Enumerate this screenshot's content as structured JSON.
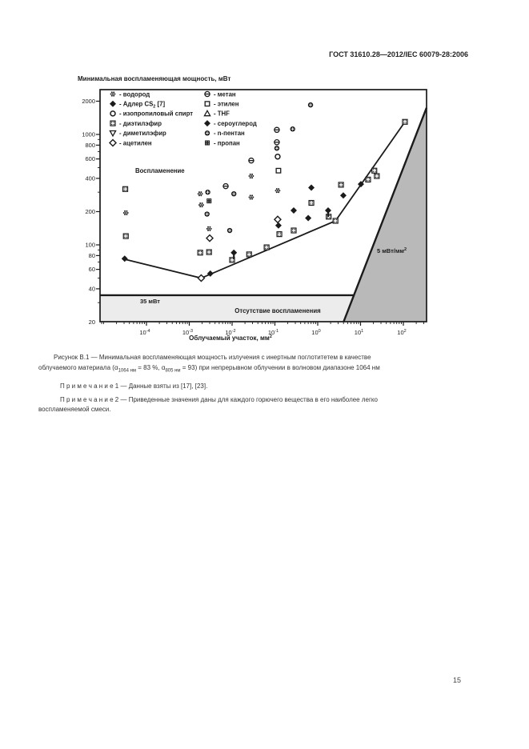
{
  "page": {
    "header": "ГОСТ 31610.28—2012/IEC 60079-28:2006",
    "page_number": "15"
  },
  "figure": {
    "caption_line1": "Рисунок В.1 — Минимальная воспламеняющая мощность излучения с инертным поглотитетем в качестве",
    "caption_line2_parts": {
      "a": "облучаемого материала (α",
      "sub1": "1064 нм",
      "b": " = 83 %, α",
      "sub2": "805 нм",
      "c": " = 93) при непрерывном облучении в волновом диапазоне 1064 нм"
    },
    "note1": "П р и м е ч а н и е  1 — Данные взяты из [17], [23].",
    "note2_line1": "П р и м е ч а н и е  2 — Приведенные значения даны для каждого горючего вещества в его наиболее легко",
    "note2_line2": "воспламеняемой смеси."
  },
  "chart_data": {
    "type": "scatter",
    "x_scale": "log",
    "y_scale": "log",
    "y_axis_title": "Минимальная воспламеняющая мощность, мВт",
    "x_axis_label": {
      "text": "Облучаемый участок, мм",
      "sup": "2"
    },
    "x_tick_exponents": [
      -4,
      -3,
      -2,
      -1,
      0,
      1,
      2
    ],
    "y_ticks": [
      2000,
      1000,
      800,
      600,
      400,
      200,
      100,
      80,
      60,
      40,
      20
    ],
    "region_labels": {
      "ignition": "Воспламенение",
      "no_ignition": "Отсутствие воспламенения"
    },
    "threshold_line": {
      "power_mW": 35,
      "label": "35 мВт"
    },
    "power_density_line": {
      "mW_per_mm2": 5,
      "label": {
        "text": "5 мВт/мм",
        "sup": "2"
      }
    },
    "boundary_line_points": [
      [
        3.1e-05,
        74
      ],
      [
        0.0019,
        50
      ],
      [
        2.6,
        165
      ],
      [
        109,
        1300
      ]
    ],
    "legend": {
      "columns": [
        [
          {
            "marker": "hydrogen",
            "label": "- водород"
          },
          {
            "marker": "cs2",
            "label": "- Адлер CS",
            "sub": "2",
            "label2": " [7]"
          },
          {
            "marker": "ipa",
            "label": "- изопропиловый спирт"
          },
          {
            "marker": "diethyl_ether",
            "label": "- диэтилэфир"
          },
          {
            "marker": "dimethyl_ether",
            "label": "- диметилэфир"
          },
          {
            "marker": "acetylene",
            "label": "- ацетилен"
          }
        ],
        [
          {
            "marker": "methane",
            "label": "- метан"
          },
          {
            "marker": "ethylene",
            "label": "- этилен"
          },
          {
            "marker": "thf",
            "label": "- THF"
          },
          {
            "marker": "cs2",
            "label": "- сероуглерод"
          },
          {
            "marker": "n_pentane",
            "label": "- n-пентан"
          },
          {
            "marker": "propane",
            "label": "- пропан"
          }
        ]
      ]
    },
    "series": [
      {
        "name": "водород",
        "marker": "hydrogen",
        "points": [
          [
            3.3e-05,
            195
          ],
          [
            0.0018,
            290
          ],
          [
            0.0019,
            230
          ],
          [
            0.0029,
            140
          ],
          [
            0.028,
            420
          ],
          [
            0.028,
            270
          ],
          [
            0.116,
            310
          ]
        ]
      },
      {
        "name": "Адлер CS2 [7]",
        "marker": "cs2",
        "points": [
          [
            3.1e-05,
            75
          ],
          [
            0.0031,
            55
          ],
          [
            0.121,
            150
          ]
        ]
      },
      {
        "name": "изопропиловый спирт",
        "marker": "ipa",
        "points": [
          [
            0.116,
            630
          ]
        ]
      },
      {
        "name": "диэтилэфир",
        "marker": "diethyl_ether",
        "points": [
          [
            3.2e-05,
            320
          ],
          [
            3.3e-05,
            120
          ],
          [
            0.0018,
            85
          ],
          [
            0.0029,
            86
          ],
          [
            0.01,
            73
          ],
          [
            0.025,
            82
          ],
          [
            0.064,
            95
          ],
          [
            0.127,
            125
          ],
          [
            0.275,
            135
          ],
          [
            0.71,
            240
          ],
          [
            1.8,
            180
          ],
          [
            2.6,
            165
          ],
          [
            3.5,
            350
          ],
          [
            15,
            390
          ],
          [
            21,
            470
          ],
          [
            24,
            420
          ],
          [
            109,
            1300
          ]
        ]
      },
      {
        "name": "диметилэфир",
        "marker": "dimethyl_ether",
        "points": []
      },
      {
        "name": "ацетилен",
        "marker": "acetylene",
        "points": [
          [
            0.003,
            115
          ],
          [
            0.0019,
            50
          ],
          [
            0.116,
            170
          ]
        ]
      },
      {
        "name": "метан",
        "marker": "methane",
        "points": [
          [
            0.0071,
            340
          ],
          [
            0.028,
            580
          ],
          [
            0.111,
            1100
          ],
          [
            0.111,
            850
          ]
        ]
      },
      {
        "name": "этилен",
        "marker": "ethylene",
        "points": [
          [
            0.121,
            470
          ]
        ]
      },
      {
        "name": "THF",
        "marker": "thf",
        "points": []
      },
      {
        "name": "сероуглерод",
        "marker": "cs2",
        "points": [
          [
            0.275,
            205
          ],
          [
            0.6,
            175
          ],
          [
            0.71,
            330
          ],
          [
            3.96,
            280
          ],
          [
            10.2,
            355
          ],
          [
            0.011,
            85,
            "arrow"
          ],
          [
            1.75,
            205,
            "arrow"
          ]
        ]
      },
      {
        "name": "n-пентан",
        "marker": "n_pentane",
        "points": [
          [
            0.0027,
            300
          ],
          [
            0.0026,
            190
          ],
          [
            0.0088,
            135
          ],
          [
            0.011,
            290
          ],
          [
            0.111,
            750
          ],
          [
            0.26,
            1120
          ],
          [
            0.68,
            1850
          ]
        ]
      },
      {
        "name": "пропан",
        "marker": "propane",
        "points": [
          [
            0.0029,
            250
          ]
        ]
      }
    ]
  }
}
